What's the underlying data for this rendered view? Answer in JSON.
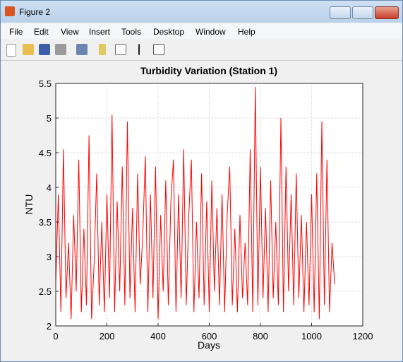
{
  "window_title": "Figure 2",
  "menu": [
    "File",
    "Edit",
    "View",
    "Insert",
    "Tools",
    "Desktop",
    "Window",
    "Help"
  ],
  "chart_data": {
    "type": "line",
    "title": "Turbidity Variation (Station 1)",
    "x_label": "Days",
    "y_label": "NTU",
    "x": [
      0,
      10,
      20,
      30,
      40,
      50,
      60,
      70,
      80,
      90,
      100,
      110,
      120,
      130,
      140,
      150,
      160,
      170,
      180,
      190,
      200,
      210,
      220,
      230,
      240,
      250,
      260,
      270,
      280,
      290,
      300,
      310,
      320,
      330,
      340,
      350,
      360,
      370,
      380,
      390,
      400,
      410,
      420,
      430,
      440,
      450,
      460,
      470,
      480,
      490,
      500,
      510,
      520,
      530,
      540,
      550,
      560,
      570,
      580,
      590,
      600,
      610,
      620,
      630,
      640,
      650,
      660,
      670,
      680,
      690,
      700,
      710,
      720,
      730,
      740,
      750,
      760,
      770,
      780,
      790,
      800,
      810,
      820,
      830,
      840,
      850,
      860,
      870,
      880,
      890,
      900,
      910,
      920,
      930,
      940,
      950,
      960,
      970,
      980,
      990,
      1000,
      1010,
      1020,
      1030,
      1040,
      1050,
      1060,
      1070,
      1080,
      1090
    ],
    "series": [
      {
        "name": "Turbidity",
        "color": "#ff0000",
        "values": [
          2.6,
          3.9,
          2.2,
          4.55,
          2.4,
          3.2,
          2.1,
          3.6,
          2.5,
          4.4,
          2.2,
          3.4,
          2.3,
          4.75,
          2.1,
          2.9,
          4.2,
          2.3,
          3.5,
          2.2,
          3.9,
          2.4,
          5.05,
          2.2,
          3.8,
          2.5,
          4.3,
          2.3,
          4.95,
          2.4,
          3.7,
          2.2,
          4.2,
          2.6,
          3.3,
          4.45,
          2.2,
          3.9,
          2.4,
          4.3,
          2.1,
          3.6,
          2.5,
          4.1,
          2.3,
          3.8,
          4.4,
          2.2,
          3.9,
          2.4,
          4.55,
          2.3,
          3.6,
          4.4,
          2.2,
          3.5,
          2.4,
          4.2,
          2.3,
          3.8,
          2.2,
          4.1,
          2.5,
          3.7,
          2.3,
          3.9,
          2.2,
          3.6,
          4.3,
          2.3,
          3.4,
          2.2,
          3.6,
          2.4,
          3.2,
          2.3,
          4.55,
          2.2,
          5.45,
          2.3,
          4.3,
          2.4,
          3.7,
          2.2,
          4.1,
          2.4,
          3.5,
          2.3,
          5.0,
          2.2,
          4.3,
          2.5,
          3.9,
          2.3,
          4.2,
          2.4,
          3.6,
          2.2,
          3.5,
          2.3,
          3.9,
          2.2,
          4.2,
          2.1,
          4.95,
          2.3,
          4.4,
          2.2,
          3.2,
          2.6
        ]
      }
    ],
    "xlim": [
      0,
      1200
    ],
    "ylim": [
      2,
      5.5
    ],
    "xticks": [
      0,
      200,
      400,
      600,
      800,
      1000,
      1200
    ],
    "yticks": [
      2,
      2.5,
      3,
      3.5,
      4,
      4.5,
      5,
      5.5
    ],
    "grid": true
  }
}
